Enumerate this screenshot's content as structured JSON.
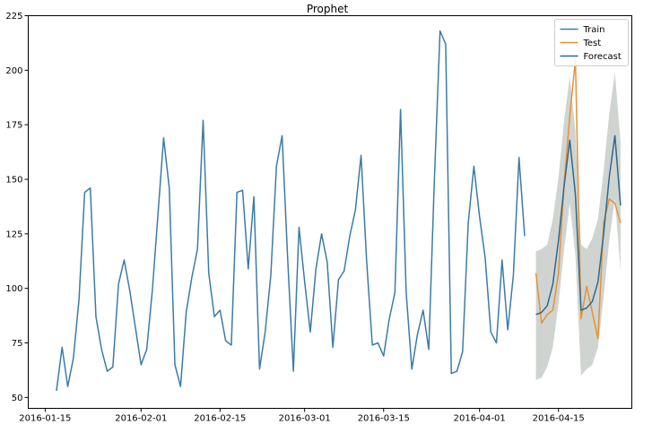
{
  "chart_data": {
    "type": "line",
    "title": "Prophet",
    "xlabel": "",
    "ylabel": "",
    "xlim": [
      "2016-01-12",
      "2016-04-28"
    ],
    "ylim": [
      45,
      225
    ],
    "x_ticks": [
      "2016-01-15",
      "2016-02-01",
      "2016-02-15",
      "2016-03-01",
      "2016-03-15",
      "2016-04-01",
      "2016-04-15"
    ],
    "y_ticks": [
      50,
      75,
      100,
      125,
      150,
      175,
      200,
      225
    ],
    "grid": false,
    "legend_position": "top-right",
    "colors": {
      "train": "#3a7ca5",
      "test": "#e69138",
      "forecast": "#2c6a8f",
      "band": "#c8ccc8"
    },
    "legend": [
      "Train",
      "Test",
      "Forecast"
    ],
    "series": [
      {
        "name": "Train",
        "x_start": "2016-01-17",
        "values": [
          53,
          73,
          55,
          68,
          95,
          144,
          146,
          87,
          72,
          62,
          64,
          102,
          113,
          99,
          82,
          65,
          72,
          99,
          134,
          169,
          146,
          65,
          55,
          89,
          105,
          118,
          177,
          107,
          87,
          90,
          76,
          74,
          144,
          145,
          109,
          142,
          63,
          80,
          106,
          156,
          170,
          113,
          62,
          128,
          103,
          80,
          109,
          125,
          112,
          73,
          104,
          108,
          124,
          136,
          161,
          112,
          74,
          75,
          69,
          86,
          98,
          182,
          98,
          63,
          79,
          90,
          72,
          150,
          218,
          212,
          61,
          62,
          71,
          130,
          156,
          133,
          114,
          80,
          75,
          113,
          81,
          106,
          160,
          124
        ]
      },
      {
        "name": "Test",
        "x_start": "2016-04-11",
        "values": [
          107,
          84,
          88,
          90,
          107,
          148,
          179,
          205,
          86,
          101,
          89,
          77,
          130,
          141,
          139,
          130
        ]
      },
      {
        "name": "Forecast",
        "x_start": "2016-04-11",
        "values": [
          88,
          89,
          92,
          102,
          122,
          147,
          168,
          143,
          90,
          91,
          94,
          103,
          125,
          151,
          170,
          138
        ],
        "lower": [
          58,
          59,
          64,
          73,
          93,
          118,
          139,
          115,
          60,
          63,
          65,
          73,
          96,
          122,
          141,
          108
        ],
        "upper": [
          117,
          118,
          120,
          132,
          151,
          177,
          197,
          172,
          120,
          118,
          123,
          132,
          154,
          180,
          199,
          167
        ]
      }
    ]
  }
}
